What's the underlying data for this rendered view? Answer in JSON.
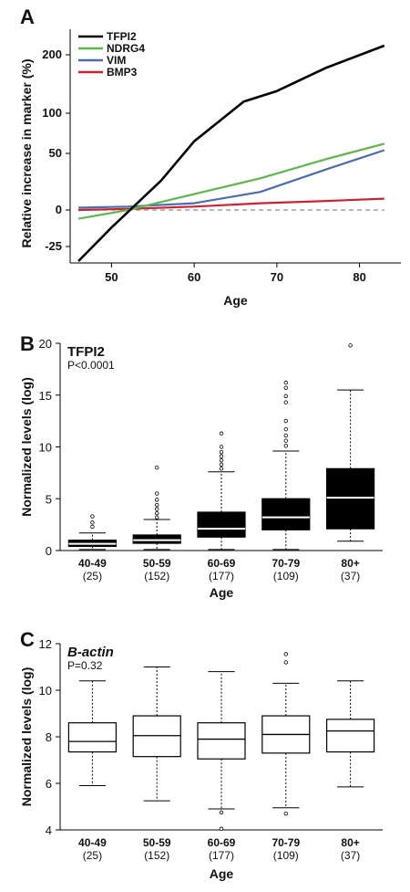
{
  "chart_data": [
    {
      "panel": "A",
      "type": "line",
      "xlabel": "Age",
      "ylabel": "Relative increase in marker (%)",
      "xlim": [
        45,
        85
      ],
      "xticks": [
        50,
        60,
        70,
        80
      ],
      "yticks": [
        -25,
        0,
        50,
        100,
        200
      ],
      "yticks_text": [
        "-25",
        "0",
        "50",
        "100",
        "200"
      ],
      "y_scale_note": "non-linear, compressed above 100",
      "reference_line": {
        "y": 0,
        "style": "dashed",
        "color": "#a0a0a0"
      },
      "legend_position": "top-left",
      "series": [
        {
          "name": "TFPI2",
          "color": "#000000",
          "points": [
            [
              46,
              -35
            ],
            [
              50,
              -12
            ],
            [
              56,
              26
            ],
            [
              60,
              65
            ],
            [
              66,
              120
            ],
            [
              70,
              138
            ],
            [
              76,
              178
            ],
            [
              83,
              215
            ]
          ]
        },
        {
          "name": "NDRG4",
          "color": "#5cb848",
          "points": [
            [
              46,
              -6
            ],
            [
              52,
              0
            ],
            [
              60,
              14
            ],
            [
              68,
              28
            ],
            [
              76,
              45
            ],
            [
              83,
              62
            ]
          ]
        },
        {
          "name": "VIM",
          "color": "#4a6db0",
          "points": [
            [
              46,
              2
            ],
            [
              52,
              3
            ],
            [
              60,
              6
            ],
            [
              68,
              16
            ],
            [
              76,
              36
            ],
            [
              83,
              54
            ]
          ]
        },
        {
          "name": "BMP3",
          "color": "#cc2233",
          "points": [
            [
              46,
              0
            ],
            [
              52,
              1
            ],
            [
              60,
              3
            ],
            [
              68,
              6
            ],
            [
              76,
              8
            ],
            [
              83,
              10
            ]
          ]
        }
      ]
    },
    {
      "panel": "B",
      "type": "box",
      "title": "TFPI2",
      "pvalue": "P<0.0001",
      "xlabel": "Age",
      "ylabel": "Normalized levels (log)",
      "ylim": [
        0,
        20
      ],
      "yticks": [
        0,
        5,
        10,
        15,
        20
      ],
      "categories": [
        "40-49",
        "50-59",
        "60-69",
        "70-79",
        "80+"
      ],
      "counts": [
        "(25)",
        "(152)",
        "(177)",
        "(109)",
        "(37)"
      ],
      "box_fill": "#000000",
      "boxes": [
        {
          "whisker_low": 0.1,
          "q1": 0.4,
          "median": 0.65,
          "q3": 1.0,
          "whisker_high": 1.7,
          "outliers": [
            2.3,
            2.7,
            3.3
          ]
        },
        {
          "whisker_low": 0.1,
          "q1": 0.7,
          "median": 1.0,
          "q3": 1.5,
          "whisker_high": 3.0,
          "outliers": [
            3.2,
            3.6,
            4.0,
            4.4,
            4.9,
            5.5,
            8.0
          ]
        },
        {
          "whisker_low": 0.1,
          "q1": 1.3,
          "median": 2.1,
          "q3": 3.7,
          "whisker_high": 7.6,
          "outliers": [
            7.9,
            8.3,
            8.7,
            9.1,
            9.5,
            10.0,
            11.3
          ]
        },
        {
          "whisker_low": 0.1,
          "q1": 2.0,
          "median": 3.2,
          "q3": 5.0,
          "whisker_high": 9.6,
          "outliers": [
            10.1,
            10.6,
            11.1,
            11.7,
            12.5,
            14.3,
            14.9,
            15.7,
            16.2
          ]
        },
        {
          "whisker_low": 0.9,
          "q1": 2.1,
          "median": 5.1,
          "q3": 7.9,
          "whisker_high": 15.5,
          "outliers": [
            19.8
          ]
        }
      ]
    },
    {
      "panel": "C",
      "type": "box",
      "title": "B-actin",
      "pvalue": "P=0.32",
      "xlabel": "Age",
      "ylabel": "Normalized levels (log)",
      "ylim": [
        4,
        12
      ],
      "yticks": [
        4,
        6,
        8,
        10,
        12
      ],
      "categories": [
        "40-49",
        "50-59",
        "60-69",
        "70-79",
        "80+"
      ],
      "counts": [
        "(25)",
        "(152)",
        "(177)",
        "(109)",
        "(37)"
      ],
      "box_fill": "#ffffff",
      "boxes": [
        {
          "whisker_low": 5.9,
          "q1": 7.35,
          "median": 7.8,
          "q3": 8.6,
          "whisker_high": 10.4,
          "outliers": []
        },
        {
          "whisker_low": 5.25,
          "q1": 7.15,
          "median": 8.05,
          "q3": 8.9,
          "whisker_high": 11.0,
          "outliers": []
        },
        {
          "whisker_low": 4.9,
          "q1": 7.05,
          "median": 7.9,
          "q3": 8.6,
          "whisker_high": 10.8,
          "outliers": [
            4.75,
            4.05
          ]
        },
        {
          "whisker_low": 4.95,
          "q1": 7.3,
          "median": 8.1,
          "q3": 8.9,
          "whisker_high": 10.3,
          "outliers": [
            4.7,
            11.2,
            11.55
          ]
        },
        {
          "whisker_low": 5.85,
          "q1": 7.35,
          "median": 8.25,
          "q3": 8.75,
          "whisker_high": 10.4,
          "outliers": []
        }
      ]
    }
  ],
  "labels": {
    "panel_a": "A",
    "panel_b": "B",
    "panel_c": "C"
  }
}
